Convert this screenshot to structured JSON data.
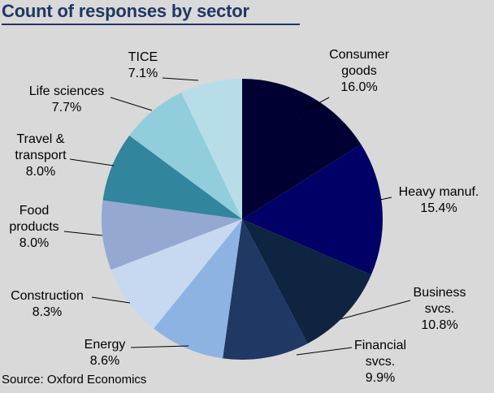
{
  "title": "Count of responses by sector",
  "source": "Source: Oxford Economics",
  "chart_data": {
    "type": "pie",
    "title": "Count of responses by sector",
    "start_angle_deg": 0,
    "direction": "clockwise",
    "slices": [
      {
        "label": [
          "Consumer",
          "goods"
        ],
        "value": 16.0,
        "value_label": "16.0%",
        "color": "#000033"
      },
      {
        "label": [
          "Heavy manuf."
        ],
        "value": 15.4,
        "value_label": "15.4%",
        "color": "#000066"
      },
      {
        "label": [
          "Business",
          "svcs."
        ],
        "value": 10.8,
        "value_label": "10.8%",
        "color": "#0f2440"
      },
      {
        "label": [
          "Financial",
          "svcs."
        ],
        "value": 9.9,
        "value_label": "9.9%",
        "color": "#1f3864"
      },
      {
        "label": [
          "Energy"
        ],
        "value": 8.6,
        "value_label": "8.6%",
        "color": "#8db3e2"
      },
      {
        "label": [
          "Construction"
        ],
        "value": 8.3,
        "value_label": "8.3%",
        "color": "#c6d9f1"
      },
      {
        "label": [
          "Food",
          "products"
        ],
        "value": 8.0,
        "value_label": "8.0%",
        "color": "#95a8d2"
      },
      {
        "label": [
          "Travel &",
          "transport"
        ],
        "value": 8.0,
        "value_label": "8.0%",
        "color": "#31859c"
      },
      {
        "label": [
          "Life sciences"
        ],
        "value": 7.7,
        "value_label": "7.7%",
        "color": "#92cddc"
      },
      {
        "label": [
          "TICE"
        ],
        "value": 7.1,
        "value_label": "7.1%",
        "color": "#b7dee8"
      }
    ],
    "legend": "none",
    "label_position": "outside with leader lines"
  }
}
